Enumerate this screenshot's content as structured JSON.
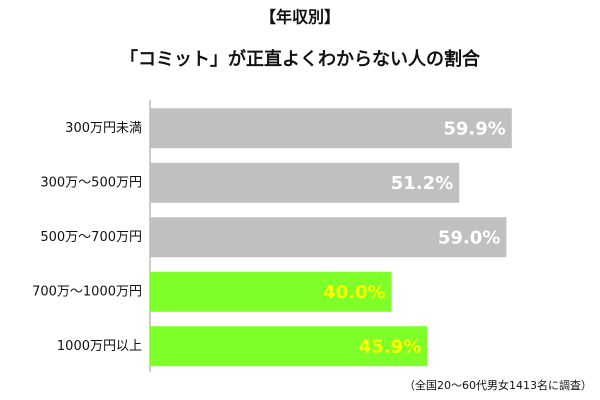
{
  "chart_data": {
    "type": "hbar",
    "title": "【年収別】",
    "subtitle": "「コミット」が正直よくわからない人の割合",
    "categories": [
      "300万円未満",
      "300万～500万円",
      "500万～700万円",
      "700万～1000万円",
      "1000万円以上"
    ],
    "values": [
      59.9,
      51.2,
      59.0,
      40.0,
      45.9
    ],
    "value_labels": [
      "59.9%",
      "51.2%",
      "59.0%",
      "40.0%",
      "45.9%"
    ],
    "colors": [
      "#c0c0c0",
      "#c0c0c0",
      "#c0c0c0",
      "#7fff2a",
      "#7fff2a"
    ],
    "label_colors": [
      "#ffffff",
      "#ffffff",
      "#ffffff",
      "#ffff00",
      "#ffff00"
    ],
    "note": "（全国20～60代男女1413名に調査）"
  }
}
